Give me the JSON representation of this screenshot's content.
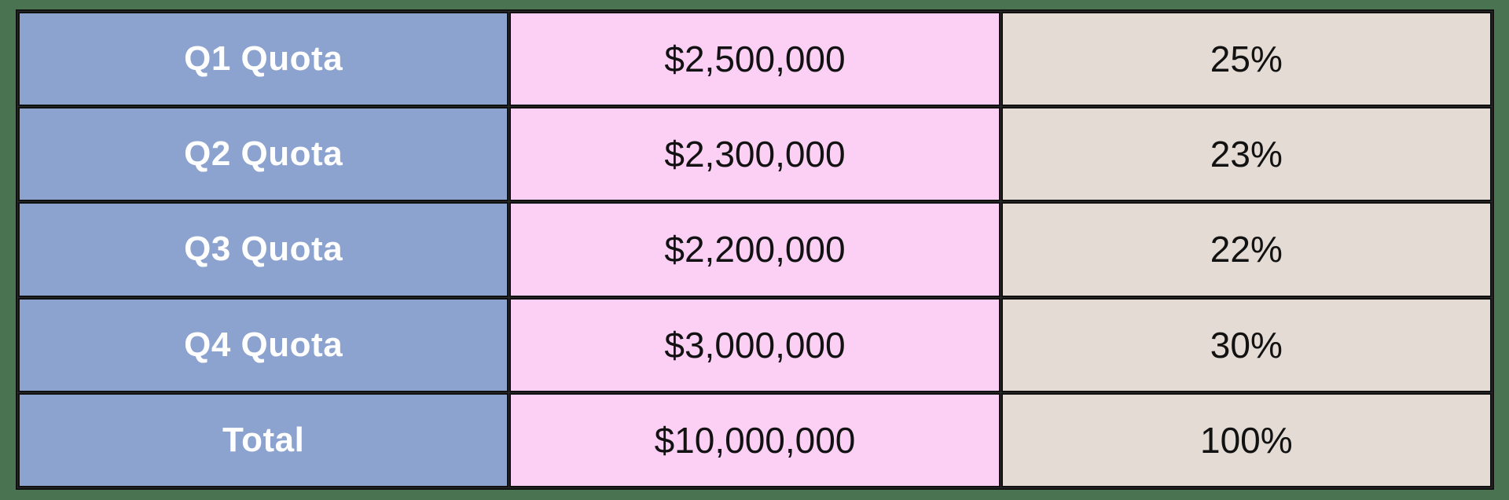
{
  "colors": {
    "page_background": "#4A7351",
    "label_cell": "#8CA2CF",
    "amount_cell": "#FBD0F4",
    "percent_cell": "#E3DBD4",
    "grid_line": "#101010",
    "label_text": "#FFFFFF",
    "value_text": "#121212"
  },
  "table": {
    "rows": [
      {
        "label": "Q1 Quota",
        "amount": "$2,500,000",
        "percent": "25%"
      },
      {
        "label": "Q2 Quota",
        "amount": "$2,300,000",
        "percent": "23%"
      },
      {
        "label": "Q3 Quota",
        "amount": "$2,200,000",
        "percent": "22%"
      },
      {
        "label": "Q4 Quota",
        "amount": "$3,000,000",
        "percent": "30%"
      },
      {
        "label": "Total",
        "amount": "$10,000,000",
        "percent": "100%"
      }
    ]
  },
  "chart_data": {
    "type": "table",
    "title": "",
    "columns": [],
    "rows": [
      [
        "Q1 Quota",
        "$2,500,000",
        "25%"
      ],
      [
        "Q2 Quota",
        "$2,300,000",
        "23%"
      ],
      [
        "Q3 Quota",
        "$2,200,000",
        "22%"
      ],
      [
        "Q4 Quota",
        "$3,000,000",
        "30%"
      ],
      [
        "Total",
        "$10,000,000",
        "100%"
      ]
    ],
    "quota_values_usd": [
      2500000,
      2300000,
      2200000,
      3000000
    ],
    "quota_share_pct": [
      25,
      23,
      22,
      30
    ],
    "total_usd": 10000000,
    "total_pct": 100
  }
}
